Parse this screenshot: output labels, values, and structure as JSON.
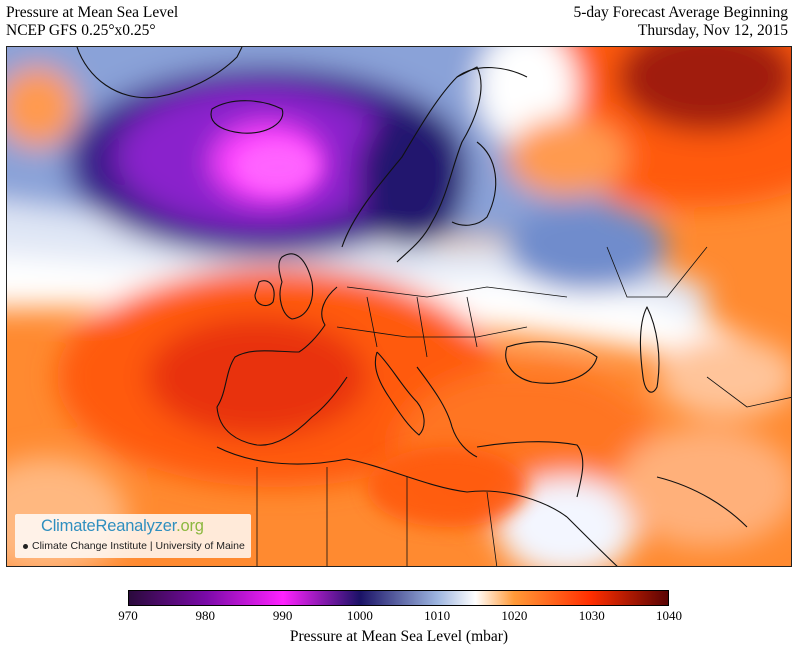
{
  "header": {
    "title_left_1": "Pressure at Mean Sea Level",
    "title_left_2": "NCEP GFS 0.25°x0.25°",
    "title_right_1": "5-day Forecast Average Beginning",
    "title_right_2": "Thursday, Nov 12, 2015"
  },
  "brand": {
    "name_part1": "ClimateReanalyzer",
    "name_part2": ".org",
    "subtitle": "Climate Change Institute | University of Maine"
  },
  "legend": {
    "title": "Pressure at Mean Sea Level (mbar)",
    "ticks": [
      "970",
      "980",
      "990",
      "1000",
      "1010",
      "1020",
      "1030",
      "1040"
    ],
    "min": 970,
    "max": 1040,
    "color_stops": [
      {
        "value": 970,
        "color": "#2a0a3c"
      },
      {
        "value": 980,
        "color": "#7a0aa8"
      },
      {
        "value": 990,
        "color": "#ff22ff"
      },
      {
        "value": 1000,
        "color": "#1a1266"
      },
      {
        "value": 1010,
        "color": "#9cb4df"
      },
      {
        "value": 1015,
        "color": "#ffffff"
      },
      {
        "value": 1020,
        "color": "#ff9a38"
      },
      {
        "value": 1030,
        "color": "#ff2e00"
      },
      {
        "value": 1040,
        "color": "#5a0404"
      }
    ]
  },
  "map": {
    "region": "Europe, North Atlantic, North Africa, Middle East",
    "features": {
      "low_center": "Norwegian Sea low",
      "high_centers": [
        "Western Russia high",
        "Iberia / Western Mediterranean high"
      ]
    }
  }
}
